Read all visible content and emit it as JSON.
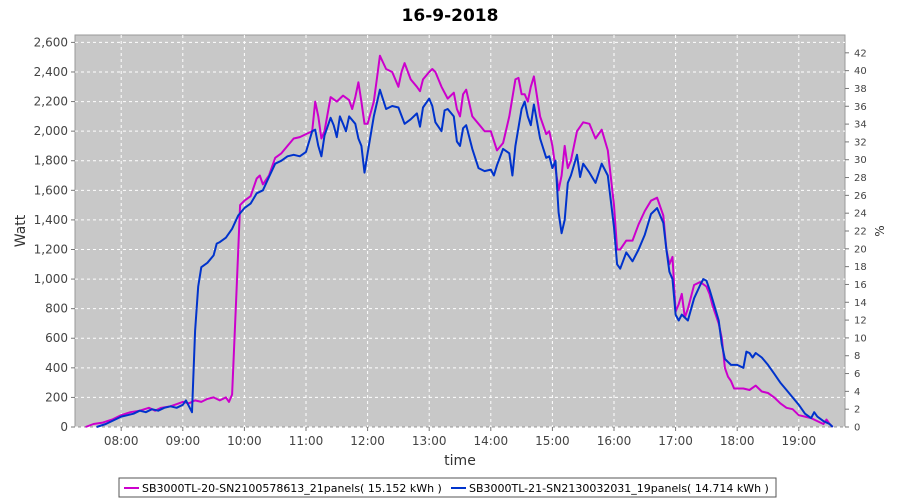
{
  "chart_data": {
    "type": "line",
    "title": "16-9-2018",
    "xlabel": "time",
    "ylabel": "Watt",
    "y2label": "%",
    "xlim": [
      7.25,
      19.75
    ],
    "ylim": [
      0,
      2650
    ],
    "y2lim": [
      0,
      44
    ],
    "grid": true,
    "legend_position": "bottom",
    "x_ticks": [
      8,
      9,
      10,
      11,
      12,
      13,
      14,
      15,
      16,
      17,
      18,
      19
    ],
    "x_tick_labels": [
      "08:00",
      "09:00",
      "10:00",
      "11:00",
      "12:00",
      "13:00",
      "14:00",
      "15:00",
      "16:00",
      "17:00",
      "18:00",
      "19:00"
    ],
    "y_ticks": [
      0,
      200,
      400,
      600,
      800,
      1000,
      1200,
      1400,
      1600,
      1800,
      2000,
      2200,
      2400,
      2600
    ],
    "y_tick_labels": [
      "0",
      "200",
      "400",
      "600",
      "800",
      "1,000",
      "1,200",
      "1,400",
      "1,600",
      "1,800",
      "2,000",
      "2,200",
      "2,400",
      "2,600"
    ],
    "y2_ticks": [
      0,
      2,
      4,
      6,
      8,
      10,
      12,
      14,
      16,
      18,
      20,
      22,
      24,
      26,
      28,
      30,
      32,
      34,
      36,
      38,
      40,
      42
    ],
    "y2_tick_labels": [
      "0",
      "2",
      "4",
      "6",
      "8",
      "10",
      "12",
      "14",
      "16",
      "18",
      "20",
      "22",
      "24",
      "26",
      "28",
      "30",
      "32",
      "34",
      "36",
      "38",
      "40",
      "42"
    ],
    "series": [
      {
        "name": "SB3000TL-20-SN2100578613_21panels( 15.152 kWh )",
        "color": "#cc00cc",
        "points": [
          [
            7.42,
            0
          ],
          [
            7.55,
            20
          ],
          [
            7.7,
            30
          ],
          [
            7.85,
            50
          ],
          [
            8.0,
            80
          ],
          [
            8.15,
            100
          ],
          [
            8.3,
            110
          ],
          [
            8.45,
            130
          ],
          [
            8.55,
            110
          ],
          [
            8.65,
            130
          ],
          [
            8.8,
            140
          ],
          [
            9.0,
            170
          ],
          [
            9.1,
            160
          ],
          [
            9.2,
            180
          ],
          [
            9.3,
            170
          ],
          [
            9.4,
            190
          ],
          [
            9.5,
            200
          ],
          [
            9.6,
            180
          ],
          [
            9.7,
            200
          ],
          [
            9.75,
            170
          ],
          [
            9.8,
            220
          ],
          [
            9.87,
            900
          ],
          [
            9.93,
            1500
          ],
          [
            10.0,
            1530
          ],
          [
            10.1,
            1560
          ],
          [
            10.2,
            1680
          ],
          [
            10.25,
            1700
          ],
          [
            10.3,
            1640
          ],
          [
            10.4,
            1700
          ],
          [
            10.5,
            1820
          ],
          [
            10.6,
            1850
          ],
          [
            10.7,
            1900
          ],
          [
            10.8,
            1950
          ],
          [
            10.9,
            1960
          ],
          [
            11.0,
            1980
          ],
          [
            11.1,
            2000
          ],
          [
            11.15,
            2200
          ],
          [
            11.2,
            2100
          ],
          [
            11.25,
            1950
          ],
          [
            11.3,
            2000
          ],
          [
            11.4,
            2230
          ],
          [
            11.5,
            2200
          ],
          [
            11.6,
            2240
          ],
          [
            11.7,
            2210
          ],
          [
            11.75,
            2150
          ],
          [
            11.8,
            2230
          ],
          [
            11.85,
            2330
          ],
          [
            11.9,
            2200
          ],
          [
            11.95,
            2050
          ],
          [
            12.0,
            2050
          ],
          [
            12.1,
            2200
          ],
          [
            12.15,
            2350
          ],
          [
            12.2,
            2510
          ],
          [
            12.3,
            2420
          ],
          [
            12.4,
            2400
          ],
          [
            12.5,
            2300
          ],
          [
            12.55,
            2400
          ],
          [
            12.6,
            2460
          ],
          [
            12.7,
            2350
          ],
          [
            12.8,
            2300
          ],
          [
            12.85,
            2270
          ],
          [
            12.9,
            2350
          ],
          [
            13.0,
            2400
          ],
          [
            13.05,
            2420
          ],
          [
            13.1,
            2400
          ],
          [
            13.2,
            2300
          ],
          [
            13.3,
            2220
          ],
          [
            13.4,
            2260
          ],
          [
            13.45,
            2150
          ],
          [
            13.5,
            2100
          ],
          [
            13.55,
            2250
          ],
          [
            13.6,
            2280
          ],
          [
            13.7,
            2100
          ],
          [
            13.8,
            2050
          ],
          [
            13.9,
            2000
          ],
          [
            14.0,
            2000
          ],
          [
            14.1,
            1870
          ],
          [
            14.2,
            1920
          ],
          [
            14.3,
            2100
          ],
          [
            14.4,
            2350
          ],
          [
            14.45,
            2360
          ],
          [
            14.5,
            2250
          ],
          [
            14.55,
            2250
          ],
          [
            14.6,
            2200
          ],
          [
            14.65,
            2300
          ],
          [
            14.7,
            2370
          ],
          [
            14.8,
            2100
          ],
          [
            14.9,
            1980
          ],
          [
            14.95,
            2000
          ],
          [
            15.0,
            1900
          ],
          [
            15.1,
            1600
          ],
          [
            15.15,
            1700
          ],
          [
            15.2,
            1900
          ],
          [
            15.25,
            1750
          ],
          [
            15.3,
            1800
          ],
          [
            15.4,
            2000
          ],
          [
            15.5,
            2060
          ],
          [
            15.6,
            2050
          ],
          [
            15.7,
            1950
          ],
          [
            15.8,
            2010
          ],
          [
            15.9,
            1870
          ],
          [
            16.0,
            1500
          ],
          [
            16.05,
            1200
          ],
          [
            16.1,
            1200
          ],
          [
            16.2,
            1260
          ],
          [
            16.3,
            1260
          ],
          [
            16.4,
            1370
          ],
          [
            16.5,
            1460
          ],
          [
            16.6,
            1530
          ],
          [
            16.7,
            1550
          ],
          [
            16.8,
            1430
          ],
          [
            16.85,
            1200
          ],
          [
            16.9,
            1100
          ],
          [
            16.95,
            1150
          ],
          [
            17.0,
            780
          ],
          [
            17.05,
            830
          ],
          [
            17.1,
            900
          ],
          [
            17.15,
            740
          ],
          [
            17.2,
            800
          ],
          [
            17.3,
            960
          ],
          [
            17.4,
            980
          ],
          [
            17.5,
            950
          ],
          [
            17.55,
            900
          ],
          [
            17.6,
            820
          ],
          [
            17.7,
            700
          ],
          [
            17.75,
            600
          ],
          [
            17.8,
            400
          ],
          [
            17.85,
            340
          ],
          [
            17.9,
            310
          ],
          [
            17.95,
            260
          ],
          [
            18.0,
            260
          ],
          [
            18.1,
            260
          ],
          [
            18.2,
            250
          ],
          [
            18.3,
            280
          ],
          [
            18.4,
            240
          ],
          [
            18.5,
            230
          ],
          [
            18.6,
            200
          ],
          [
            18.7,
            160
          ],
          [
            18.8,
            130
          ],
          [
            18.9,
            120
          ],
          [
            19.0,
            80
          ],
          [
            19.1,
            70
          ],
          [
            19.2,
            60
          ],
          [
            19.3,
            40
          ],
          [
            19.4,
            20
          ],
          [
            19.45,
            50
          ],
          [
            19.5,
            20
          ],
          [
            19.55,
            0
          ]
        ]
      },
      {
        "name": "SB3000TL-21-SN2130032031_19panels( 14.714 kWh )",
        "color": "#0033cc",
        "points": [
          [
            7.6,
            0
          ],
          [
            7.75,
            20
          ],
          [
            7.9,
            50
          ],
          [
            8.0,
            70
          ],
          [
            8.1,
            80
          ],
          [
            8.2,
            90
          ],
          [
            8.3,
            110
          ],
          [
            8.4,
            100
          ],
          [
            8.5,
            120
          ],
          [
            8.6,
            110
          ],
          [
            8.7,
            130
          ],
          [
            8.8,
            140
          ],
          [
            8.9,
            130
          ],
          [
            9.0,
            150
          ],
          [
            9.05,
            180
          ],
          [
            9.1,
            140
          ],
          [
            9.15,
            100
          ],
          [
            9.2,
            650
          ],
          [
            9.25,
            950
          ],
          [
            9.3,
            1080
          ],
          [
            9.4,
            1110
          ],
          [
            9.5,
            1160
          ],
          [
            9.55,
            1240
          ],
          [
            9.6,
            1250
          ],
          [
            9.7,
            1280
          ],
          [
            9.8,
            1340
          ],
          [
            9.9,
            1430
          ],
          [
            10.0,
            1480
          ],
          [
            10.1,
            1510
          ],
          [
            10.2,
            1580
          ],
          [
            10.3,
            1600
          ],
          [
            10.4,
            1690
          ],
          [
            10.5,
            1780
          ],
          [
            10.6,
            1800
          ],
          [
            10.7,
            1830
          ],
          [
            10.8,
            1840
          ],
          [
            10.9,
            1830
          ],
          [
            11.0,
            1860
          ],
          [
            11.1,
            2000
          ],
          [
            11.15,
            2010
          ],
          [
            11.2,
            1900
          ],
          [
            11.25,
            1830
          ],
          [
            11.3,
            1970
          ],
          [
            11.4,
            2090
          ],
          [
            11.45,
            2040
          ],
          [
            11.5,
            1960
          ],
          [
            11.55,
            2100
          ],
          [
            11.6,
            2050
          ],
          [
            11.65,
            2000
          ],
          [
            11.7,
            2100
          ],
          [
            11.8,
            2050
          ],
          [
            11.85,
            1950
          ],
          [
            11.9,
            1900
          ],
          [
            11.95,
            1720
          ],
          [
            12.0,
            1850
          ],
          [
            12.1,
            2100
          ],
          [
            12.2,
            2280
          ],
          [
            12.3,
            2150
          ],
          [
            12.4,
            2170
          ],
          [
            12.5,
            2160
          ],
          [
            12.6,
            2050
          ],
          [
            12.7,
            2080
          ],
          [
            12.8,
            2120
          ],
          [
            12.85,
            2030
          ],
          [
            12.9,
            2160
          ],
          [
            13.0,
            2220
          ],
          [
            13.05,
            2170
          ],
          [
            13.1,
            2060
          ],
          [
            13.2,
            2000
          ],
          [
            13.25,
            2140
          ],
          [
            13.3,
            2150
          ],
          [
            13.4,
            2100
          ],
          [
            13.45,
            1930
          ],
          [
            13.5,
            1900
          ],
          [
            13.55,
            2020
          ],
          [
            13.6,
            2040
          ],
          [
            13.7,
            1880
          ],
          [
            13.8,
            1750
          ],
          [
            13.9,
            1730
          ],
          [
            14.0,
            1740
          ],
          [
            14.05,
            1700
          ],
          [
            14.1,
            1770
          ],
          [
            14.2,
            1880
          ],
          [
            14.3,
            1850
          ],
          [
            14.35,
            1700
          ],
          [
            14.4,
            1900
          ],
          [
            14.5,
            2150
          ],
          [
            14.55,
            2200
          ],
          [
            14.6,
            2100
          ],
          [
            14.65,
            2040
          ],
          [
            14.7,
            2180
          ],
          [
            14.8,
            1950
          ],
          [
            14.9,
            1820
          ],
          [
            14.95,
            1830
          ],
          [
            15.0,
            1750
          ],
          [
            15.05,
            1800
          ],
          [
            15.1,
            1450
          ],
          [
            15.15,
            1310
          ],
          [
            15.2,
            1400
          ],
          [
            15.25,
            1650
          ],
          [
            15.3,
            1700
          ],
          [
            15.4,
            1840
          ],
          [
            15.45,
            1690
          ],
          [
            15.5,
            1780
          ],
          [
            15.6,
            1720
          ],
          [
            15.7,
            1650
          ],
          [
            15.8,
            1780
          ],
          [
            15.9,
            1700
          ],
          [
            16.0,
            1350
          ],
          [
            16.05,
            1100
          ],
          [
            16.1,
            1070
          ],
          [
            16.2,
            1180
          ],
          [
            16.3,
            1120
          ],
          [
            16.4,
            1200
          ],
          [
            16.5,
            1300
          ],
          [
            16.6,
            1440
          ],
          [
            16.7,
            1480
          ],
          [
            16.8,
            1380
          ],
          [
            16.85,
            1200
          ],
          [
            16.9,
            1050
          ],
          [
            16.95,
            1000
          ],
          [
            17.0,
            760
          ],
          [
            17.05,
            720
          ],
          [
            17.1,
            760
          ],
          [
            17.2,
            720
          ],
          [
            17.3,
            870
          ],
          [
            17.4,
            960
          ],
          [
            17.45,
            1000
          ],
          [
            17.5,
            990
          ],
          [
            17.55,
            930
          ],
          [
            17.6,
            860
          ],
          [
            17.7,
            720
          ],
          [
            17.75,
            560
          ],
          [
            17.8,
            460
          ],
          [
            17.9,
            420
          ],
          [
            18.0,
            420
          ],
          [
            18.1,
            400
          ],
          [
            18.15,
            510
          ],
          [
            18.2,
            500
          ],
          [
            18.25,
            470
          ],
          [
            18.3,
            500
          ],
          [
            18.4,
            470
          ],
          [
            18.5,
            420
          ],
          [
            18.6,
            360
          ],
          [
            18.7,
            300
          ],
          [
            18.8,
            250
          ],
          [
            18.9,
            200
          ],
          [
            19.0,
            150
          ],
          [
            19.1,
            90
          ],
          [
            19.2,
            60
          ],
          [
            19.25,
            100
          ],
          [
            19.3,
            70
          ],
          [
            19.4,
            40
          ],
          [
            19.5,
            20
          ],
          [
            19.55,
            0
          ]
        ]
      }
    ]
  }
}
